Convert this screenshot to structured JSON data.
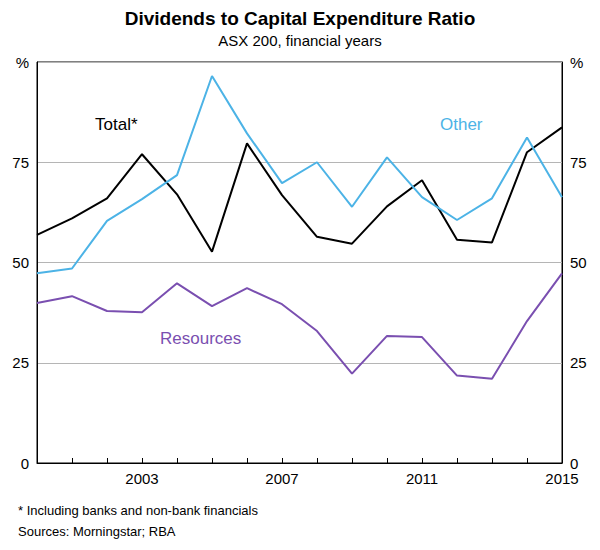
{
  "chart_data": {
    "type": "line",
    "title": "Dividends to Capital Expenditure Ratio",
    "subtitle": "ASX 200, financial years",
    "notes": [
      "* Including banks and non-bank financials",
      "Sources: Morningstar; RBA"
    ],
    "categories": [
      null,
      null,
      null,
      "2003",
      null,
      null,
      null,
      "2007",
      null,
      null,
      null,
      "2011",
      null,
      null,
      null,
      "2015"
    ],
    "series": [
      {
        "name": "Total*",
        "color": "#000000",
        "values": [
          56.9,
          61.0,
          66.0,
          77.0,
          67.0,
          52.7,
          79.7,
          66.8,
          56.4,
          54.7,
          64.0,
          70.5,
          55.7,
          55.0,
          77.5,
          83.7
        ]
      },
      {
        "name": "Other",
        "color": "#4cb3e6",
        "values": [
          47.3,
          48.5,
          60.4,
          65.8,
          71.8,
          96.5,
          82.2,
          69.8,
          75.0,
          63.9,
          76.2,
          66.3,
          60.6,
          66.0,
          81.2,
          66.3
        ]
      },
      {
        "name": "Resources",
        "color": "#7a4fb0",
        "values": [
          39.9,
          41.6,
          37.9,
          37.6,
          44.8,
          39.1,
          43.6,
          39.6,
          32.9,
          22.3,
          31.7,
          31.4,
          21.8,
          21.0,
          35.4,
          47.3
        ]
      }
    ],
    "ylim": [
      0,
      100
    ],
    "yticks": [
      0,
      25,
      50,
      75,
      {
        "value": 100,
        "label": "%"
      }
    ],
    "y2lim": [
      0,
      100
    ],
    "y2ticks": [
      0,
      25,
      50,
      75,
      {
        "value": 100,
        "label": "%"
      }
    ],
    "grid": true
  }
}
